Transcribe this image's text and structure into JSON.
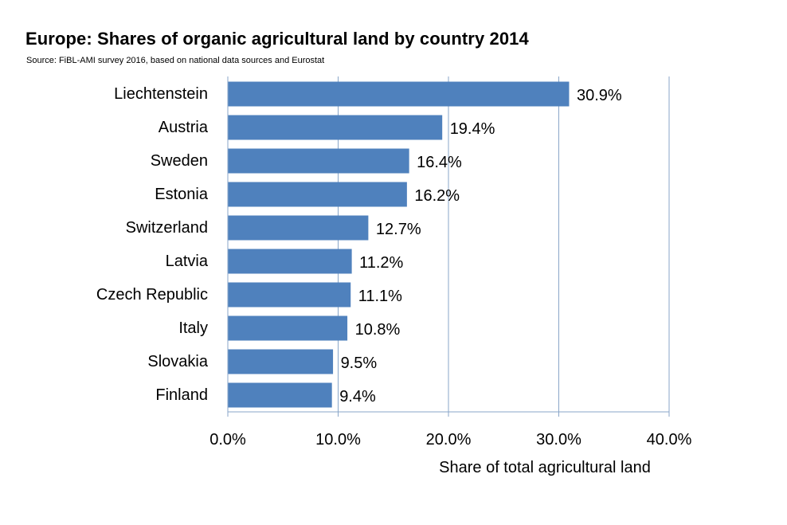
{
  "chart_data": {
    "type": "bar",
    "orientation": "horizontal",
    "title": "Europe: Shares of organic agricultural land by country 2014",
    "subtitle": "Source: FiBL-AMI survey 2016, based on national data sources and Eurostat",
    "xlabel": "Share of total agricultural land",
    "ylabel": "",
    "xlim": [
      0,
      40
    ],
    "xticks": [
      0,
      10,
      20,
      30,
      40
    ],
    "xtick_labels": [
      "0.0%",
      "10.0%",
      "20.0%",
      "30.0%",
      "40.0%"
    ],
    "grid": "vertical",
    "legend": "none",
    "bar_color": "#4F81BD",
    "grid_color": "#8AA6C8",
    "categories": [
      "Liechtenstein",
      "Austria",
      "Sweden",
      "Estonia",
      "Switzerland",
      "Latvia",
      "Czech Republic",
      "Italy",
      "Slovakia",
      "Finland"
    ],
    "values": [
      30.9,
      19.4,
      16.4,
      16.2,
      12.7,
      11.2,
      11.1,
      10.8,
      9.5,
      9.4
    ],
    "value_labels": [
      "30.9%",
      "19.4%",
      "16.4%",
      "16.2%",
      "12.7%",
      "11.2%",
      "11.1%",
      "10.8%",
      "9.5%",
      "9.4%"
    ]
  }
}
